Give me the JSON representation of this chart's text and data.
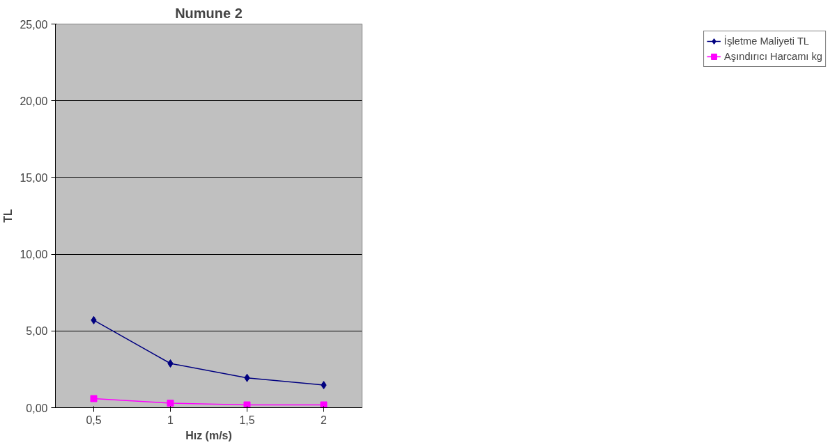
{
  "chart_data": {
    "type": "line",
    "title": "Numune 2",
    "xlabel": "Hız (m/s)",
    "ylabel": "TL",
    "categories": [
      "0,5",
      "1",
      "1,5",
      "2"
    ],
    "series": [
      {
        "name": "İşletme Maliyeti TL",
        "color": "#000080",
        "marker": "diamond",
        "values": [
          5.7,
          2.88,
          1.94,
          1.47
        ]
      },
      {
        "name": "Aşındırıcı Harcamı kg",
        "color": "#ff00ff",
        "marker": "square",
        "values": [
          0.59,
          0.29,
          0.18,
          0.18
        ]
      }
    ],
    "ylim": [
      0,
      25
    ],
    "yticks": [
      {
        "value": 0,
        "label": "0,00"
      },
      {
        "value": 5,
        "label": "5,00"
      },
      {
        "value": 10,
        "label": "10,00"
      },
      {
        "value": 15,
        "label": "15,00"
      },
      {
        "value": 20,
        "label": "20,00"
      },
      {
        "value": 25,
        "label": "25,00"
      }
    ],
    "grid": "y",
    "legend": "right"
  }
}
